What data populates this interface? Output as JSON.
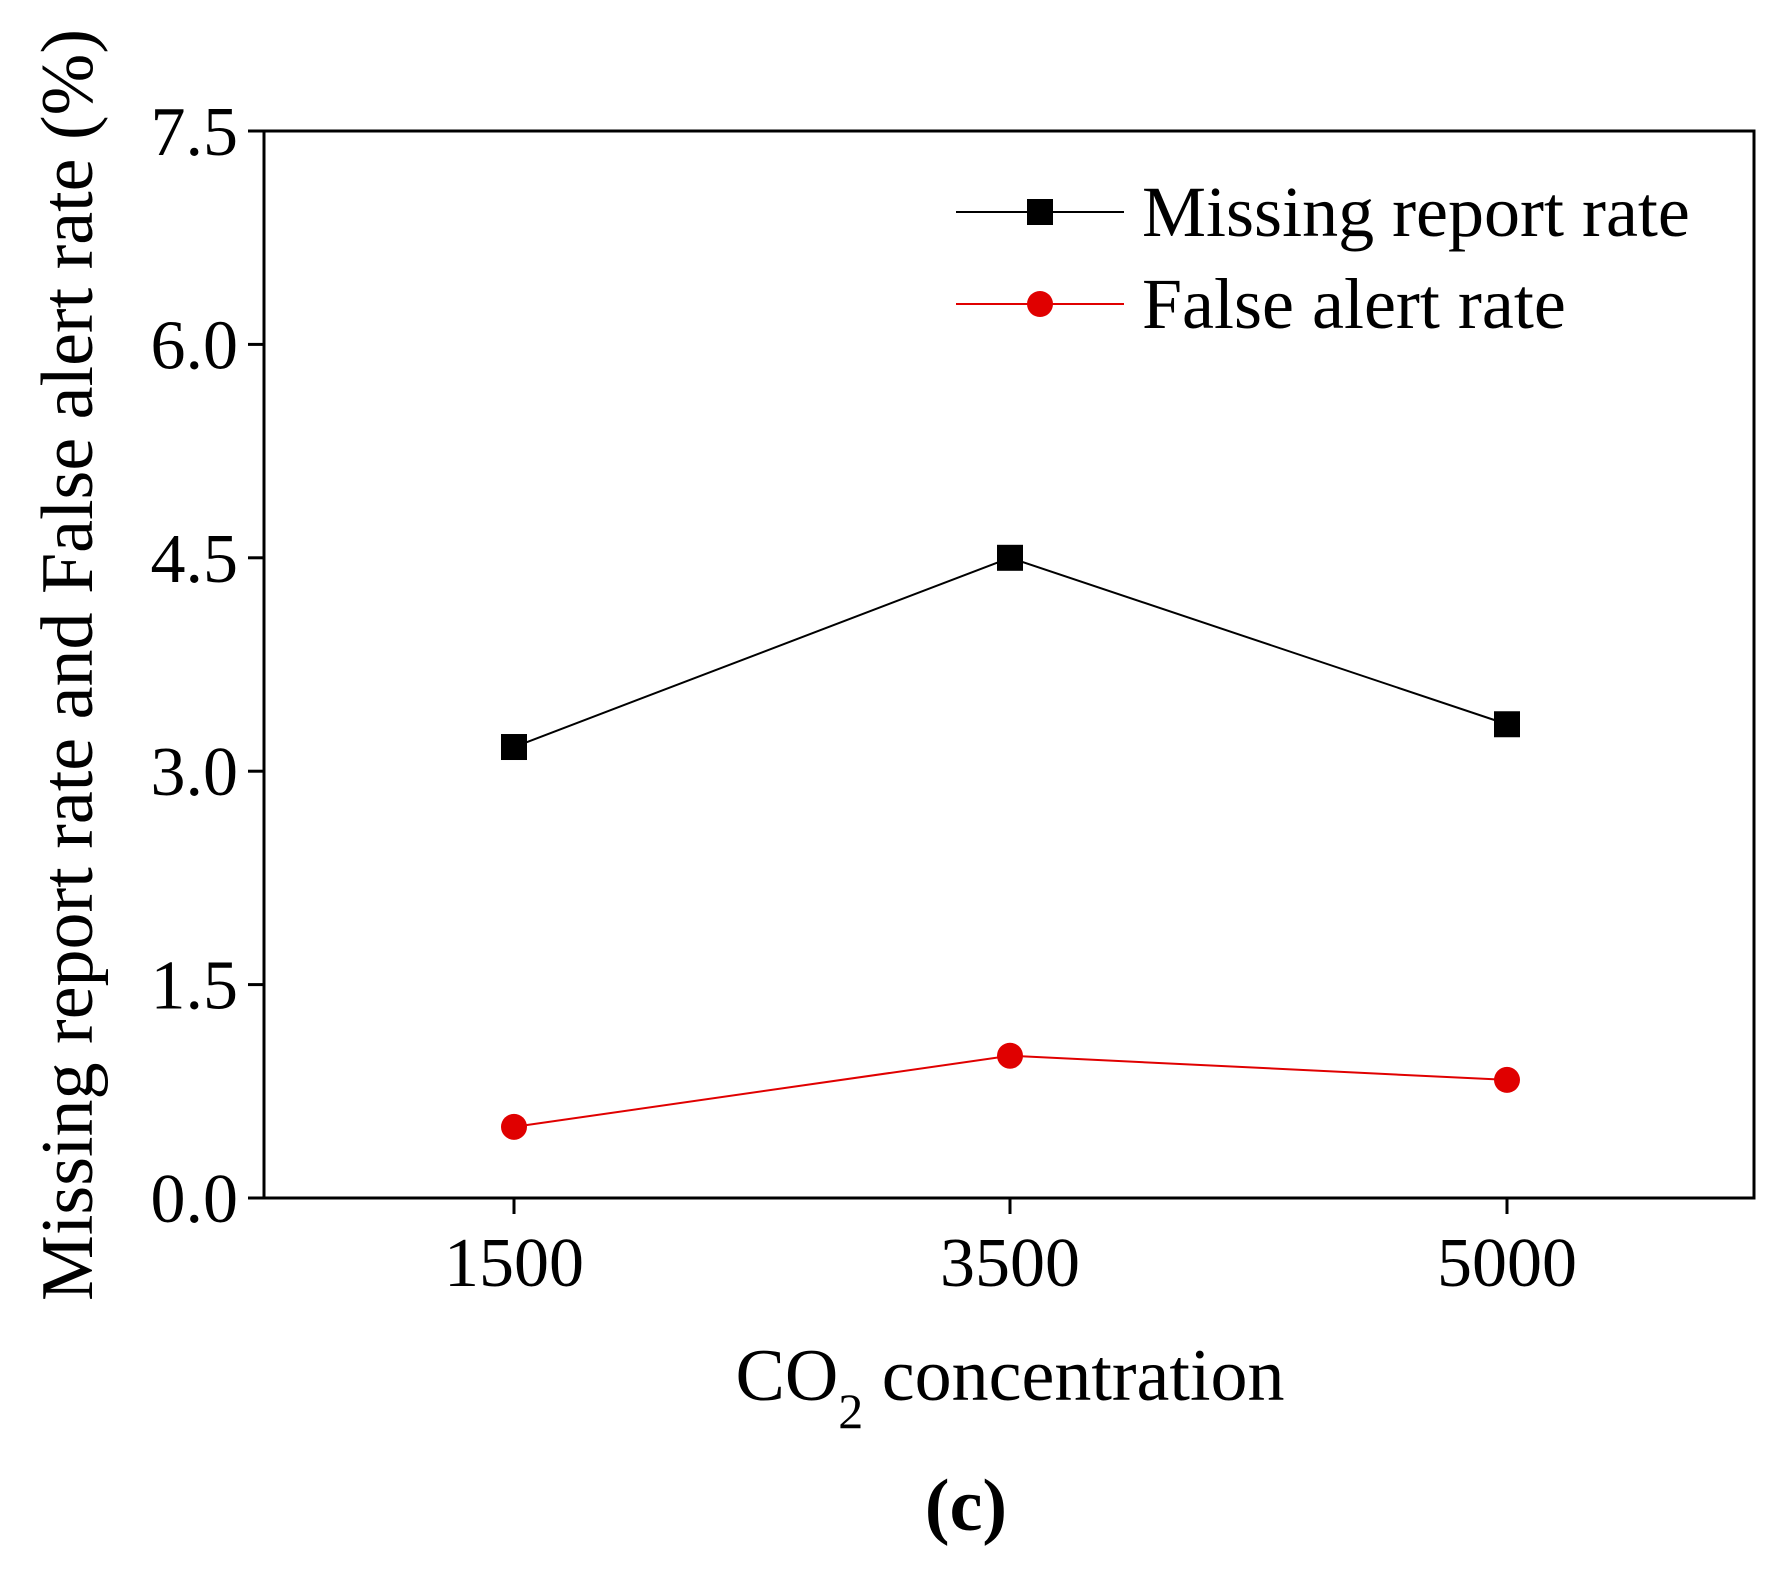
{
  "chart_data": {
    "type": "line",
    "panel_label": "(c)",
    "xlabel_main": "CO",
    "xlabel_sub": "2",
    "xlabel_rest": " concentration",
    "ylabel": "Missing report rate and False alert rate (%)",
    "categories": [
      "1500",
      "3500",
      "5000"
    ],
    "yticks": [
      "0.0",
      "1.5",
      "3.0",
      "4.5",
      "6.0",
      "7.5"
    ],
    "ylim": [
      0,
      7.5
    ],
    "legend_position": "top-right",
    "series": [
      {
        "name": "Missing report rate",
        "values": [
          3.17,
          4.5,
          3.33
        ],
        "color": "#000000",
        "marker": "square"
      },
      {
        "name": "False alert rate",
        "values": [
          0.5,
          1.0,
          0.83
        ],
        "color": "#e00000",
        "marker": "circle"
      }
    ]
  }
}
